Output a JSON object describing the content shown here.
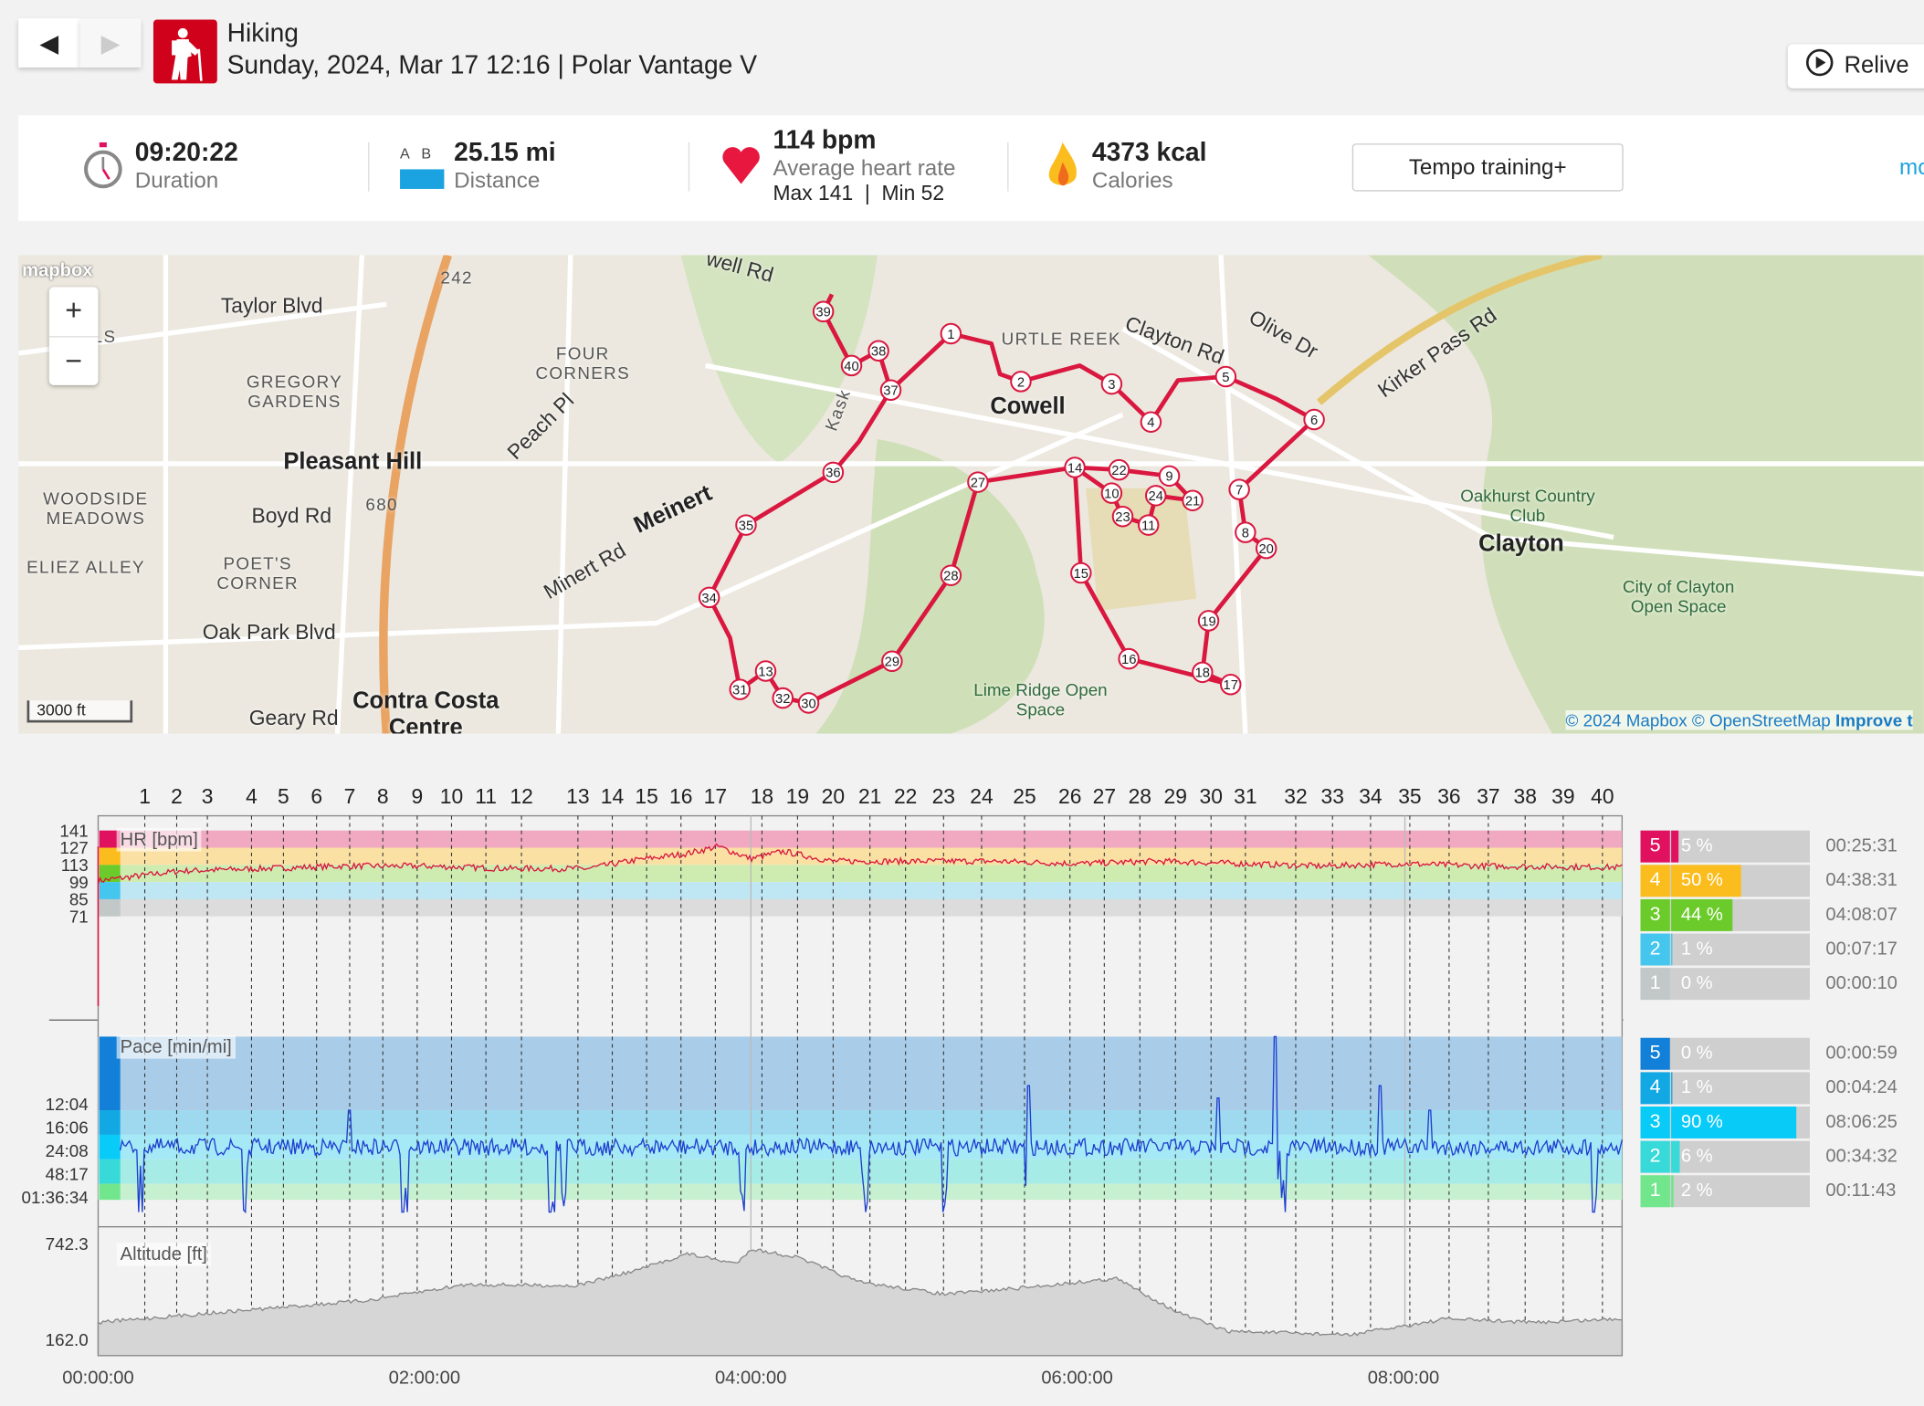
{
  "header": {
    "back_label": "◀",
    "forward_label": "▶",
    "sport": "Hiking",
    "subtitle": "Sunday, 2024, Mar 17 12:16 | Polar Vantage V",
    "relive_label": "Relive"
  },
  "stats": {
    "duration": {
      "value": "09:20:22",
      "label": "Duration"
    },
    "distance": {
      "ab": "A   B",
      "value": "25.15 mi",
      "label": "Distance"
    },
    "heart_rate": {
      "value": "114 bpm",
      "label": "Average heart rate",
      "maxmin": "Max 141  |  Min 52"
    },
    "calories": {
      "value": "4373 kcal",
      "label": "Calories"
    },
    "training_button": "Tempo training+",
    "more_link": "mo"
  },
  "map": {
    "zoom_in": "+",
    "zoom_out": "−",
    "brand": "mapbox",
    "scale": "3000 ft",
    "attribution": {
      "copy": "© 2024 Mapbox © ",
      "osm": "OpenStreetMap",
      "improve": "Improve t"
    },
    "labels": [
      "Taylor Blvd",
      "GREGORY GARDENS",
      "FOUR CORNERS",
      "Pleasant Hill",
      "WOODSIDE MEADOWS",
      "Boyd Rd",
      "POET'S CORNER",
      "Oak Park Blvd",
      "Geary Rd",
      "Contra Costa Centre",
      "Meinert",
      "Minert Rd",
      "Peach Pl",
      "Cowell",
      "Clayton Rd",
      "Olive Dr",
      "Kirker Pass Rd",
      "Oakhurst Country Club",
      "Clayton",
      "City of Clayton Open Space",
      "Lime Ridge Open Space",
      "242",
      "680",
      "NIA LS",
      "ELIEZ ALLEY",
      "URTLE REEK",
      "Kask",
      "well Rd"
    ],
    "lap_markers": [
      "1",
      "2",
      "3",
      "4",
      "5",
      "6",
      "7",
      "8",
      "9",
      "10",
      "11",
      "12",
      "13",
      "14",
      "15",
      "16",
      "17",
      "18",
      "19",
      "20",
      "21",
      "22",
      "23",
      "24",
      "27",
      "28",
      "29",
      "30",
      "31",
      "32",
      "34",
      "35",
      "36",
      "37",
      "38",
      "39",
      "40"
    ]
  },
  "laps": [
    "1",
    "2",
    "3",
    "4",
    "5",
    "6",
    "7",
    "8",
    "9",
    "10",
    "11",
    "12",
    "13",
    "14",
    "15",
    "16",
    "17",
    "18",
    "19",
    "20",
    "21",
    "22",
    "23",
    "24",
    "25",
    "26",
    "27",
    "28",
    "29",
    "30",
    "31",
    "32",
    "33",
    "34",
    "35",
    "36",
    "37",
    "38",
    "39",
    "40"
  ],
  "charts": {
    "hr": {
      "label": "HR [bpm]",
      "ticks": [
        "141",
        "127",
        "113",
        "99",
        "85",
        "71"
      ]
    },
    "pace": {
      "label": "Pace [min/mi]",
      "ticks": [
        "12:04",
        "16:06",
        "24:08",
        "48:17",
        "01:36:34"
      ]
    },
    "altitude": {
      "label": "Altitude [ft]",
      "ticks": [
        "742.3",
        "162.0"
      ]
    },
    "time_ticks": [
      "00:00:00",
      "02:00:00",
      "04:00:00",
      "06:00:00",
      "08:00:00"
    ]
  },
  "hr_zones": [
    {
      "zone": "5",
      "pct": "5 %",
      "fraction": 0.05,
      "time": "00:25:31",
      "color": "#e0115f"
    },
    {
      "zone": "4",
      "pct": "50 %",
      "fraction": 0.5,
      "time": "04:38:31",
      "color": "#fbbd1e"
    },
    {
      "zone": "3",
      "pct": "44 %",
      "fraction": 0.44,
      "time": "04:08:07",
      "color": "#6bcb2a"
    },
    {
      "zone": "2",
      "pct": "1 %",
      "fraction": 0.01,
      "time": "00:07:17",
      "color": "#45c6ee"
    },
    {
      "zone": "1",
      "pct": "0 %",
      "fraction": 0.0,
      "time": "00:00:10",
      "color": "#c2c8c8"
    }
  ],
  "pace_zones": [
    {
      "zone": "5",
      "pct": "0 %",
      "fraction": 0.0,
      "time": "00:00:59",
      "color": "#1280d8"
    },
    {
      "zone": "4",
      "pct": "1 %",
      "fraction": 0.01,
      "time": "00:04:24",
      "color": "#12a8e4"
    },
    {
      "zone": "3",
      "pct": "90 %",
      "fraction": 0.9,
      "time": "08:06:25",
      "color": "#08cbf8"
    },
    {
      "zone": "2",
      "pct": "6 %",
      "fraction": 0.06,
      "time": "00:34:32",
      "color": "#38d9d9"
    },
    {
      "zone": "1",
      "pct": "2 %",
      "fraction": 0.02,
      "time": "00:11:43",
      "color": "#72e68c"
    }
  ],
  "chart_data": {
    "type": "line",
    "x_unit": "hours",
    "x_range": [
      0,
      9.34
    ],
    "series": [
      {
        "name": "HR [bpm]",
        "ylim": [
          71,
          141
        ],
        "x": [
          0,
          0.5,
          1,
          1.5,
          2,
          2.5,
          3,
          3.3,
          3.6,
          3.8,
          4,
          4.2,
          4.5,
          5,
          5.5,
          6,
          6.5,
          7,
          7.5,
          8,
          8.5,
          9.34
        ],
        "values": [
          100,
          108,
          110,
          112,
          112,
          110,
          110,
          117,
          122,
          128,
          118,
          124,
          116,
          116,
          116,
          114,
          116,
          114,
          112,
          114,
          112,
          111
        ]
      },
      {
        "name": "Altitude [ft]",
        "ylim": [
          162.0,
          742.3
        ],
        "x": [
          0,
          0.9,
          1.65,
          2.26,
          2.93,
          3.31,
          3.61,
          3.91,
          4.0,
          4.29,
          4.66,
          5.19,
          5.64,
          6.24,
          6.62,
          6.92,
          7.67,
          8.27,
          8.8,
          9.34
        ],
        "values": [
          255,
          332,
          394,
          495,
          487,
          587,
          688,
          626,
          719,
          665,
          510,
          433,
          471,
          533,
          317,
          200,
          177,
          278,
          255,
          278
        ]
      },
      {
        "name": "Pace [min/mi]",
        "typical": "~24:00"
      }
    ]
  }
}
